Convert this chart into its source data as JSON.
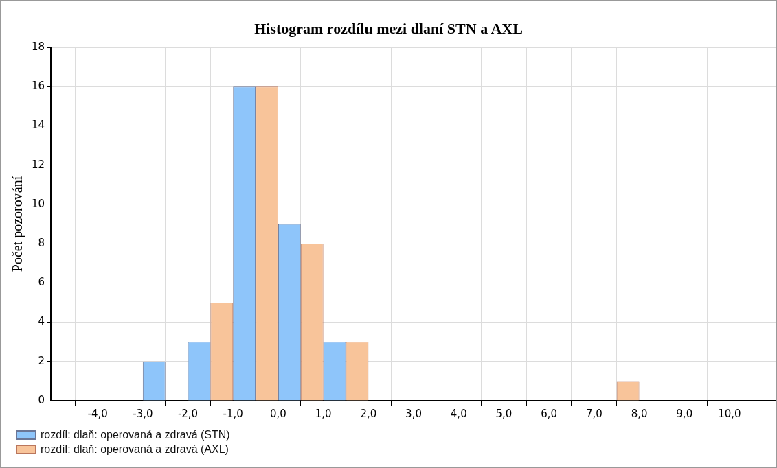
{
  "chart_data": {
    "type": "histogram",
    "title": "Histogram rozdílu mezi dlaní STN a AXL",
    "ylabel": "Počet pozorování",
    "bins": [
      -4,
      -3,
      -2,
      -1,
      0,
      1,
      2,
      3,
      4,
      5,
      6,
      7,
      8,
      9,
      10
    ],
    "series": [
      {
        "name": "rozdíl: dlaň: operovaná a zdravá (STN)",
        "color": "#8ec5fa",
        "values": [
          0,
          2,
          3,
          16,
          9,
          3,
          0,
          0,
          0,
          0,
          0,
          0,
          0,
          0
        ]
      },
      {
        "name": "rozdíl: dlaň: operovaná a zdravá (AXL)",
        "color": "#f8c49a",
        "values": [
          0,
          0,
          5,
          16,
          8,
          3,
          0,
          0,
          0,
          0,
          0,
          1,
          0,
          0
        ]
      }
    ],
    "xlim": [
      -4.5,
      10.5
    ],
    "xticks": [
      {
        "value": -4,
        "label": "-4,0"
      },
      {
        "value": -3,
        "label": "-3,0"
      },
      {
        "value": -2,
        "label": "-2,0"
      },
      {
        "value": -1,
        "label": "-1,0"
      },
      {
        "value": 0,
        "label": "0,0"
      },
      {
        "value": 1,
        "label": "1,0"
      },
      {
        "value": 2,
        "label": "2,0"
      },
      {
        "value": 3,
        "label": "3,0"
      },
      {
        "value": 4,
        "label": "4,0"
      },
      {
        "value": 5,
        "label": "5,0"
      },
      {
        "value": 6,
        "label": "6,0"
      },
      {
        "value": 7,
        "label": "7,0"
      },
      {
        "value": 8,
        "label": "8,0"
      },
      {
        "value": 9,
        "label": "9,0"
      },
      {
        "value": 10,
        "label": "10,0"
      }
    ],
    "ylim": [
      0,
      18
    ],
    "yticks": [
      0,
      2,
      4,
      6,
      8,
      10,
      12,
      14,
      16,
      18
    ],
    "grid": true,
    "legend": "bottom left"
  }
}
